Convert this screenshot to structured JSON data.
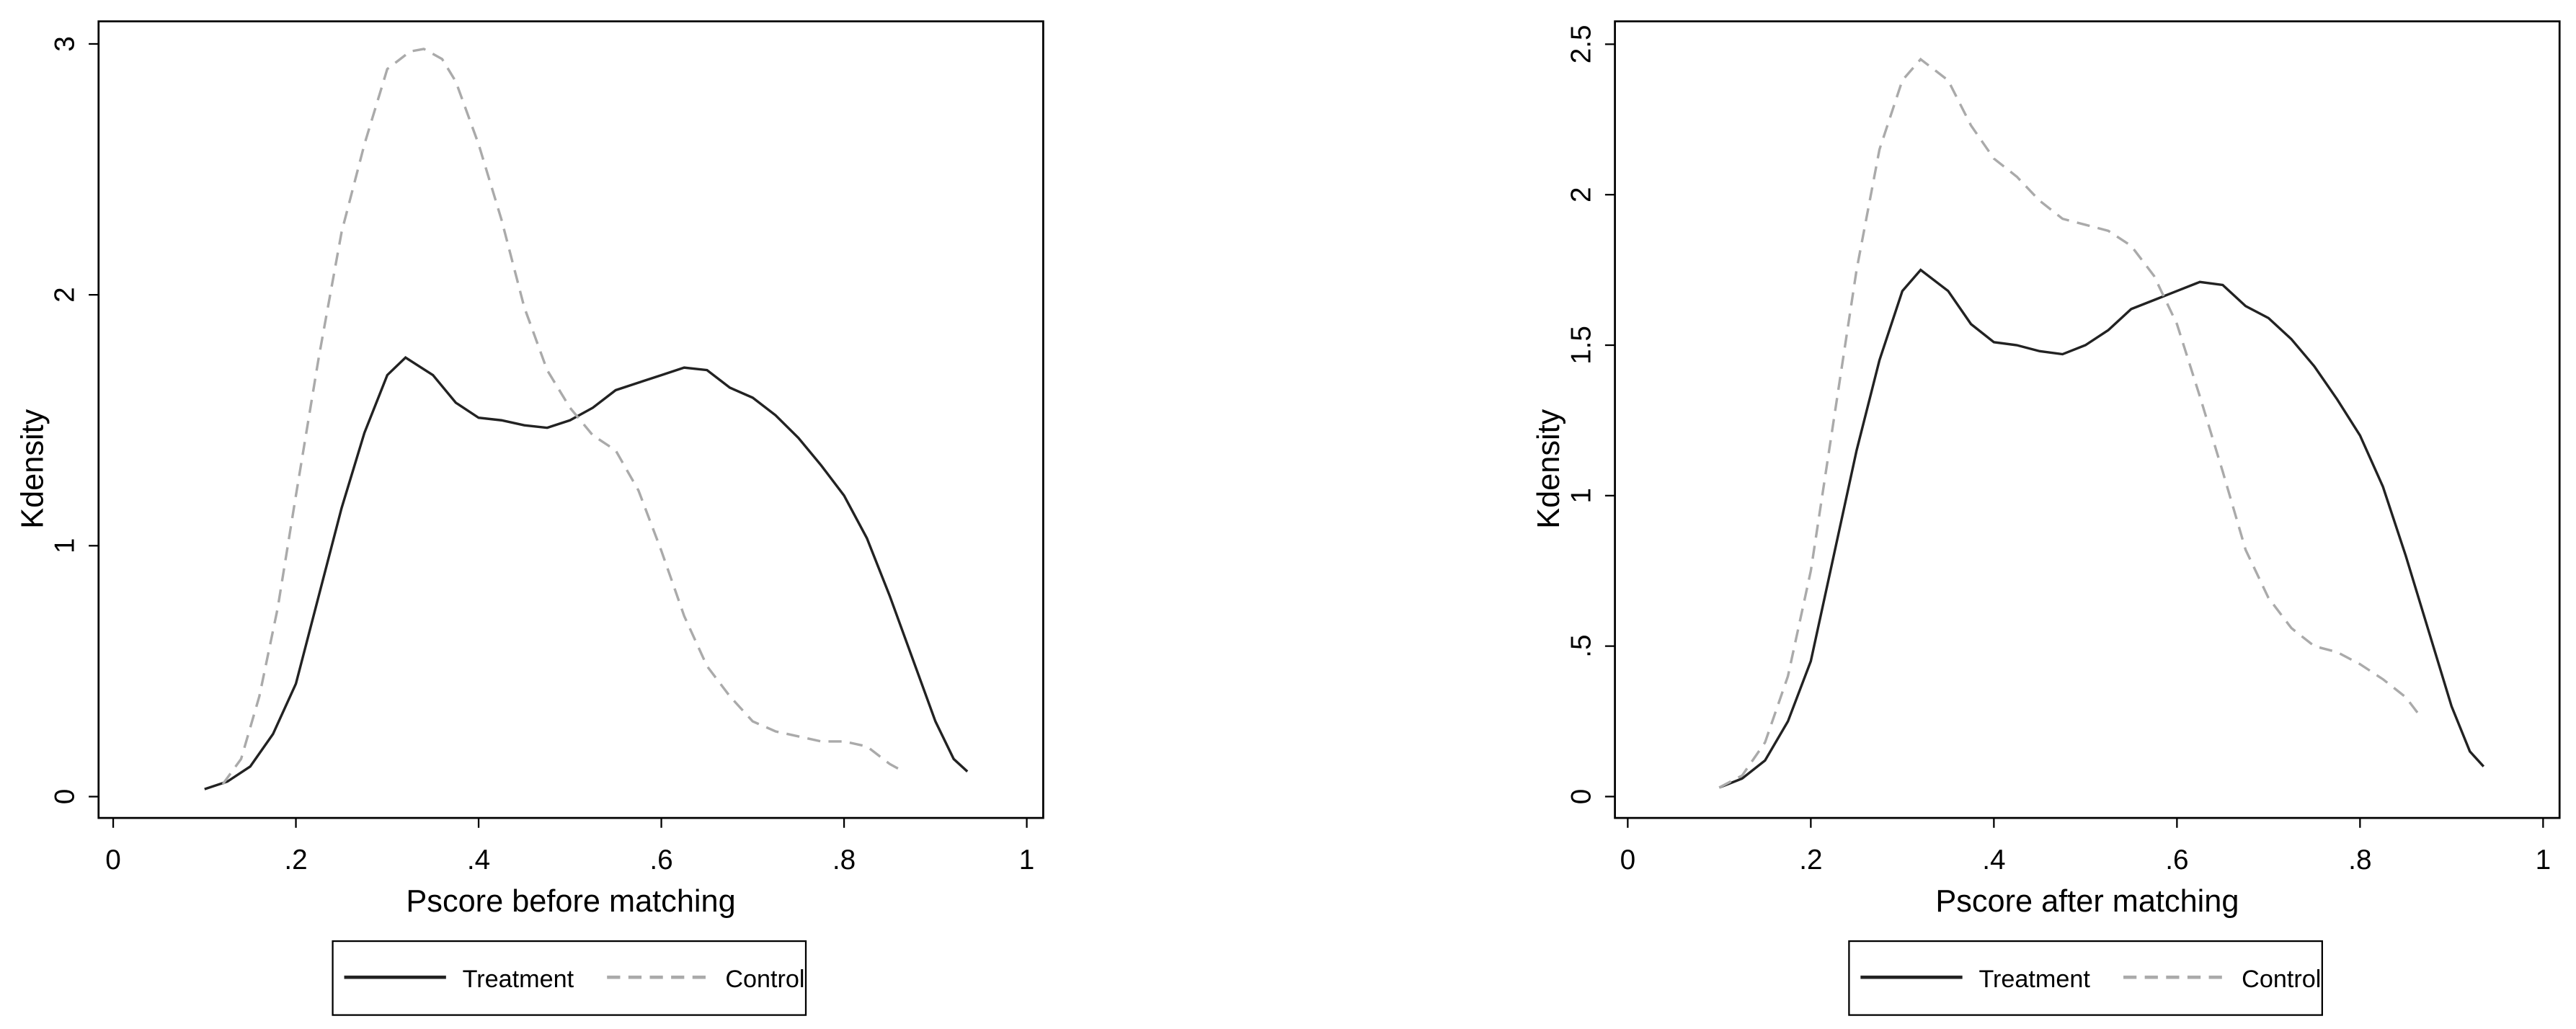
{
  "chart_data": [
    {
      "type": "line",
      "xlabel": "Pscore before matching",
      "ylabel": "Kdensity",
      "xlim": [
        -0.016,
        1.018
      ],
      "ylim": [
        -0.085,
        3.09
      ],
      "xticks": [
        0,
        {
          "value": 0.2,
          "label": ".2"
        },
        {
          "value": 0.4,
          "label": ".4"
        },
        {
          "value": 0.6,
          "label": ".6"
        },
        {
          "value": 0.8,
          "label": ".8"
        },
        1
      ],
      "yticks": [
        0,
        1,
        2,
        3
      ],
      "series": [
        {
          "name": "Treatment",
          "color": "#222222",
          "dashed": false,
          "x": [
            0.1,
            0.125,
            0.15,
            0.175,
            0.2,
            0.225,
            0.25,
            0.275,
            0.3,
            0.32,
            0.35,
            0.375,
            0.4,
            0.425,
            0.45,
            0.475,
            0.5,
            0.525,
            0.55,
            0.575,
            0.6,
            0.625,
            0.65,
            0.675,
            0.7,
            0.725,
            0.75,
            0.775,
            0.8,
            0.825,
            0.85,
            0.875,
            0.9,
            0.92,
            0.935
          ],
          "values": [
            0.03,
            0.06,
            0.12,
            0.25,
            0.45,
            0.8,
            1.15,
            1.45,
            1.68,
            1.75,
            1.68,
            1.57,
            1.51,
            1.5,
            1.48,
            1.47,
            1.5,
            1.55,
            1.62,
            1.65,
            1.68,
            1.71,
            1.7,
            1.63,
            1.59,
            1.52,
            1.43,
            1.32,
            1.2,
            1.03,
            0.8,
            0.55,
            0.3,
            0.15,
            0.1
          ]
        },
        {
          "name": "Control",
          "color": "#aaaaaa",
          "dashed": true,
          "x": [
            0.12,
            0.14,
            0.16,
            0.18,
            0.2,
            0.225,
            0.25,
            0.275,
            0.3,
            0.325,
            0.34,
            0.36,
            0.375,
            0.4,
            0.425,
            0.45,
            0.475,
            0.5,
            0.525,
            0.55,
            0.575,
            0.6,
            0.625,
            0.65,
            0.675,
            0.7,
            0.725,
            0.75,
            0.775,
            0.8,
            0.825,
            0.85,
            0.865
          ],
          "values": [
            0.05,
            0.15,
            0.4,
            0.75,
            1.2,
            1.75,
            2.25,
            2.6,
            2.9,
            2.97,
            2.98,
            2.94,
            2.85,
            2.6,
            2.3,
            1.95,
            1.7,
            1.55,
            1.44,
            1.38,
            1.22,
            0.98,
            0.72,
            0.52,
            0.4,
            0.3,
            0.26,
            0.24,
            0.22,
            0.22,
            0.2,
            0.13,
            0.1
          ]
        }
      ]
    },
    {
      "type": "line",
      "xlabel": "Pscore after matching",
      "ylabel": "Kdensity",
      "xlim": [
        -0.014,
        1.018
      ],
      "ylim": [
        -0.071,
        2.576
      ],
      "xticks": [
        0,
        {
          "value": 0.2,
          "label": ".2"
        },
        {
          "value": 0.4,
          "label": ".4"
        },
        {
          "value": 0.6,
          "label": ".6"
        },
        {
          "value": 0.8,
          "label": ".8"
        },
        1
      ],
      "yticks": [
        0,
        {
          "value": 0.5,
          "label": ".5"
        },
        1,
        1.5,
        2,
        2.5
      ],
      "series": [
        {
          "name": "Treatment",
          "color": "#222222",
          "dashed": false,
          "x": [
            0.1,
            0.125,
            0.15,
            0.175,
            0.2,
            0.225,
            0.25,
            0.275,
            0.3,
            0.32,
            0.35,
            0.375,
            0.4,
            0.425,
            0.45,
            0.475,
            0.5,
            0.525,
            0.55,
            0.575,
            0.6,
            0.625,
            0.65,
            0.675,
            0.7,
            0.725,
            0.75,
            0.775,
            0.8,
            0.825,
            0.85,
            0.875,
            0.9,
            0.92,
            0.935
          ],
          "values": [
            0.03,
            0.06,
            0.12,
            0.25,
            0.45,
            0.8,
            1.15,
            1.45,
            1.68,
            1.75,
            1.68,
            1.57,
            1.51,
            1.5,
            1.48,
            1.47,
            1.5,
            1.55,
            1.62,
            1.65,
            1.68,
            1.71,
            1.7,
            1.63,
            1.59,
            1.52,
            1.43,
            1.32,
            1.2,
            1.03,
            0.8,
            0.55,
            0.3,
            0.15,
            0.1
          ]
        },
        {
          "name": "Control",
          "color": "#aaaaaa",
          "dashed": true,
          "x": [
            0.1,
            0.125,
            0.15,
            0.175,
            0.2,
            0.225,
            0.25,
            0.275,
            0.3,
            0.32,
            0.35,
            0.375,
            0.4,
            0.425,
            0.45,
            0.475,
            0.5,
            0.525,
            0.55,
            0.575,
            0.6,
            0.625,
            0.65,
            0.675,
            0.7,
            0.725,
            0.75,
            0.775,
            0.8,
            0.825,
            0.85,
            0.865
          ],
          "values": [
            0.03,
            0.07,
            0.18,
            0.4,
            0.75,
            1.25,
            1.75,
            2.15,
            2.38,
            2.45,
            2.38,
            2.23,
            2.12,
            2.06,
            1.98,
            1.92,
            1.9,
            1.88,
            1.83,
            1.73,
            1.57,
            1.33,
            1.08,
            0.82,
            0.66,
            0.56,
            0.5,
            0.48,
            0.44,
            0.39,
            0.33,
            0.27
          ]
        }
      ]
    }
  ]
}
